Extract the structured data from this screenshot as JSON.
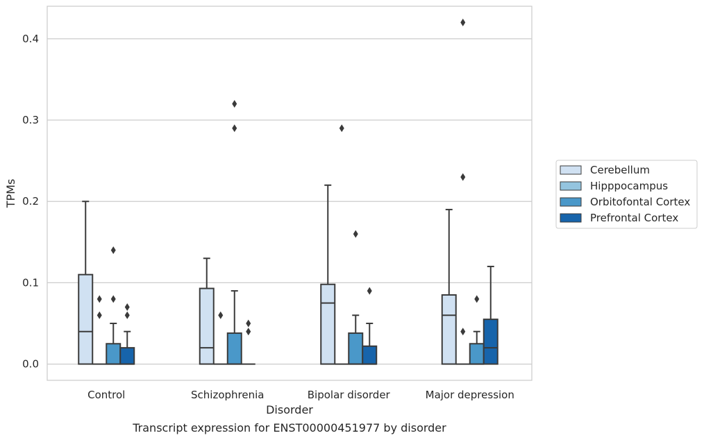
{
  "chart_data": {
    "type": "box",
    "caption": "Transcript expression for ENST00000451977 by disorder",
    "xlabel": "Disorder",
    "ylabel": "TPMs",
    "ylim": [
      -0.02,
      0.44
    ],
    "yticks": [
      0.0,
      0.1,
      0.2,
      0.3,
      0.4
    ],
    "ytick_labels": [
      "0.0",
      "0.1",
      "0.2",
      "0.3",
      "0.4"
    ],
    "grid": "horizontal",
    "legend_position": "right",
    "categories": [
      "Control",
      "Schizophrenia",
      "Bipolar disorder",
      "Major depression"
    ],
    "series": [
      {
        "name": "Cerebellum",
        "color": "#d0e1f2",
        "boxes": [
          {
            "q1": 0.0,
            "median": 0.04,
            "q3": 0.11,
            "whisker_low": 0.0,
            "whisker_high": 0.2,
            "outliers": []
          },
          {
            "q1": 0.0,
            "median": 0.02,
            "q3": 0.093,
            "whisker_low": 0.0,
            "whisker_high": 0.13,
            "outliers": []
          },
          {
            "q1": 0.0,
            "median": 0.075,
            "q3": 0.098,
            "whisker_low": 0.0,
            "whisker_high": 0.22,
            "outliers": []
          },
          {
            "q1": 0.0,
            "median": 0.06,
            "q3": 0.085,
            "whisker_low": 0.0,
            "whisker_high": 0.19,
            "outliers": []
          }
        ]
      },
      {
        "name": "Hipppocampus",
        "color": "#94c4df",
        "boxes": [
          {
            "q1": 0.0,
            "median": 0.0,
            "q3": 0.0,
            "whisker_low": 0.0,
            "whisker_high": 0.0,
            "outliers": [
              0.06,
              0.08
            ]
          },
          {
            "q1": 0.0,
            "median": 0.0,
            "q3": 0.0,
            "whisker_low": 0.0,
            "whisker_high": 0.0,
            "outliers": [
              0.06
            ]
          },
          {
            "q1": 0.0,
            "median": 0.0,
            "q3": 0.0,
            "whisker_low": 0.0,
            "whisker_high": 0.0,
            "outliers": [
              0.29
            ]
          },
          {
            "q1": 0.0,
            "median": 0.0,
            "q3": 0.0,
            "whisker_low": 0.0,
            "whisker_high": 0.0,
            "outliers": [
              0.04,
              0.23,
              0.42
            ]
          }
        ]
      },
      {
        "name": "Orbitofontal Cortex",
        "color": "#4a98c9",
        "boxes": [
          {
            "q1": 0.0,
            "median": 0.0,
            "q3": 0.025,
            "whisker_low": 0.0,
            "whisker_high": 0.05,
            "outliers": [
              0.08,
              0.14
            ]
          },
          {
            "q1": 0.0,
            "median": 0.0,
            "q3": 0.038,
            "whisker_low": 0.0,
            "whisker_high": 0.09,
            "outliers": [
              0.29,
              0.32
            ]
          },
          {
            "q1": 0.0,
            "median": 0.0,
            "q3": 0.038,
            "whisker_low": 0.0,
            "whisker_high": 0.06,
            "outliers": [
              0.16
            ]
          },
          {
            "q1": 0.0,
            "median": 0.0,
            "q3": 0.025,
            "whisker_low": 0.0,
            "whisker_high": 0.04,
            "outliers": [
              0.08
            ]
          }
        ]
      },
      {
        "name": "Prefrontal Cortex",
        "color": "#1764ab",
        "boxes": [
          {
            "q1": 0.0,
            "median": 0.0,
            "q3": 0.02,
            "whisker_low": 0.0,
            "whisker_high": 0.04,
            "outliers": [
              0.06,
              0.07
            ]
          },
          {
            "q1": 0.0,
            "median": 0.0,
            "q3": 0.0,
            "whisker_low": 0.0,
            "whisker_high": 0.0,
            "outliers": [
              0.04,
              0.05
            ]
          },
          {
            "q1": 0.0,
            "median": 0.0,
            "q3": 0.022,
            "whisker_low": 0.0,
            "whisker_high": 0.05,
            "outliers": [
              0.09
            ]
          },
          {
            "q1": 0.0,
            "median": 0.02,
            "q3": 0.055,
            "whisker_low": 0.0,
            "whisker_high": 0.12,
            "outliers": []
          }
        ]
      }
    ]
  }
}
